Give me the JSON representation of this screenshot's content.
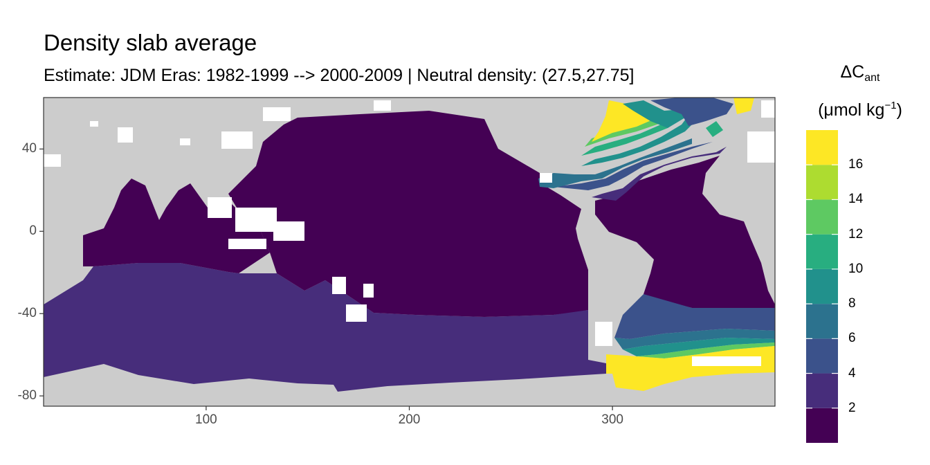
{
  "title": "Density slab average",
  "subtitle": "Estimate: JDM Eras: 1982-1999 --> 2000-2009 | Neutral density: (27.5,27.75]",
  "map": {
    "x_ticks": [
      "100",
      "200",
      "300"
    ],
    "y_ticks": [
      "40",
      "0",
      "-40",
      "-80"
    ],
    "x_tick_values": [
      100,
      200,
      300
    ],
    "y_tick_values": [
      40,
      0,
      -40,
      -80
    ],
    "xlim": [
      20,
      380
    ],
    "ylim": [
      -85,
      65
    ],
    "land_color": "#cccccc",
    "no_data_color": "#ffffff",
    "border_color": "#333333"
  },
  "legend": {
    "title_symbol": "ΔC",
    "title_subscript": "ant",
    "unit_prefix": "(μmol kg",
    "unit_superscript": "−1",
    "unit_suffix": ")",
    "labels": [
      "16",
      "14",
      "12",
      "10",
      "8",
      "6",
      "4",
      "2"
    ],
    "label_values": [
      16,
      14,
      12,
      10,
      8,
      6,
      4,
      2
    ],
    "range": [
      0,
      18
    ],
    "colors": [
      "#440154",
      "#472d7b",
      "#3b528b",
      "#2c728e",
      "#21918c",
      "#28ae80",
      "#5ec962",
      "#addc30",
      "#fde725"
    ]
  }
}
